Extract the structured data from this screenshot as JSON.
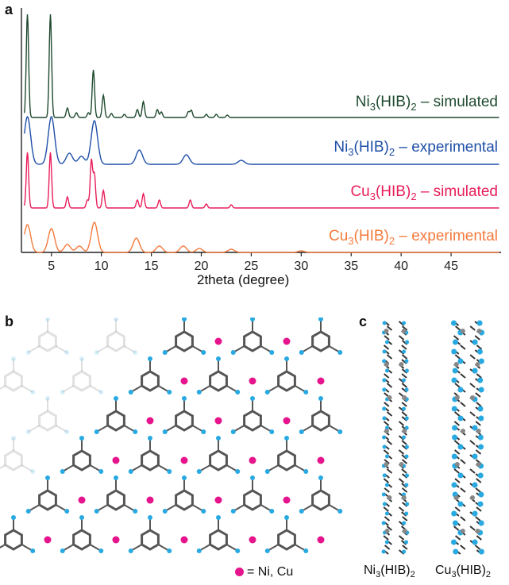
{
  "panels": {
    "a": "a",
    "b": "b",
    "c": "c"
  },
  "chart_data": {
    "type": "line",
    "xlabel": "2theta (degree)",
    "x_ticks": [
      5,
      10,
      15,
      20,
      25,
      30,
      35,
      40,
      45
    ],
    "xlim": [
      2,
      50
    ],
    "y_axis_shown": false,
    "series": [
      {
        "name": "Ni3(HIB)2 – simulated",
        "label_main": "Ni",
        "label_sub1": "3",
        "label_mid": "(HIB)",
        "label_sub2": "2",
        "label_tail": " – simulated",
        "color": "#1f4a2f",
        "peaks": [
          [
            2.6,
            130
          ],
          [
            4.9,
            130
          ],
          [
            6.6,
            12
          ],
          [
            7.5,
            6
          ],
          [
            8.7,
            6
          ],
          [
            9.2,
            60
          ],
          [
            10.2,
            28
          ],
          [
            11.0,
            5
          ],
          [
            12.3,
            4
          ],
          [
            13.6,
            10
          ],
          [
            14.2,
            20
          ],
          [
            15.6,
            10
          ],
          [
            16.0,
            7
          ],
          [
            18.7,
            7
          ],
          [
            19.0,
            9
          ],
          [
            20.5,
            4
          ],
          [
            21.5,
            4
          ],
          [
            22.6,
            3
          ]
        ]
      },
      {
        "name": "Ni3(HIB)2 – experimental",
        "label_main": "Ni",
        "label_sub1": "3",
        "label_mid": "(HIB)",
        "label_sub2": "2",
        "label_tail": " – experimental",
        "color": "#1f4fa8",
        "peaks": [
          [
            2.6,
            60
          ],
          [
            5.0,
            60
          ],
          [
            6.8,
            14
          ],
          [
            8.0,
            10
          ],
          [
            9.3,
            55
          ],
          [
            13.8,
            18
          ],
          [
            18.5,
            12
          ],
          [
            24.0,
            5
          ]
        ]
      },
      {
        "name": "Cu3(HIB)2 – simulated",
        "label_main": "Cu",
        "label_sub1": "3",
        "label_mid": "(HIB)",
        "label_sub2": "2",
        "label_tail": " – simulated",
        "color": "#e81d5a",
        "peaks": [
          [
            2.6,
            70
          ],
          [
            4.9,
            70
          ],
          [
            6.6,
            14
          ],
          [
            8.6,
            10
          ],
          [
            9.0,
            60
          ],
          [
            9.3,
            42
          ],
          [
            10.2,
            22
          ],
          [
            13.6,
            10
          ],
          [
            14.2,
            18
          ],
          [
            15.8,
            10
          ],
          [
            18.9,
            10
          ],
          [
            20.5,
            5
          ],
          [
            23.0,
            4
          ]
        ]
      },
      {
        "name": "Cu3(HIB)2 – experimental",
        "label_main": "Cu",
        "label_sub1": "3",
        "label_mid": "(HIB)",
        "label_sub2": "2",
        "label_tail": " – experimental",
        "color": "#f47a3c",
        "peaks": [
          [
            2.6,
            35
          ],
          [
            5.0,
            30
          ],
          [
            6.6,
            10
          ],
          [
            7.8,
            8
          ],
          [
            9.3,
            38
          ],
          [
            13.5,
            18
          ],
          [
            15.8,
            8
          ],
          [
            18.2,
            8
          ],
          [
            19.8,
            5
          ],
          [
            23.0,
            4
          ],
          [
            30.0,
            2
          ]
        ]
      }
    ]
  },
  "panel_b": {
    "legend_text": "= Ni, Cu",
    "metal_color": "#e6148c",
    "atom_c": "#555555",
    "atom_n": "#27a9e1"
  },
  "panel_c": {
    "left": {
      "main": "Ni",
      "s1": "3",
      "mid": "(HIB)",
      "s2": "2"
    },
    "right": {
      "main": "Cu",
      "s1": "3",
      "mid": "(HIB)",
      "s2": "2"
    }
  }
}
